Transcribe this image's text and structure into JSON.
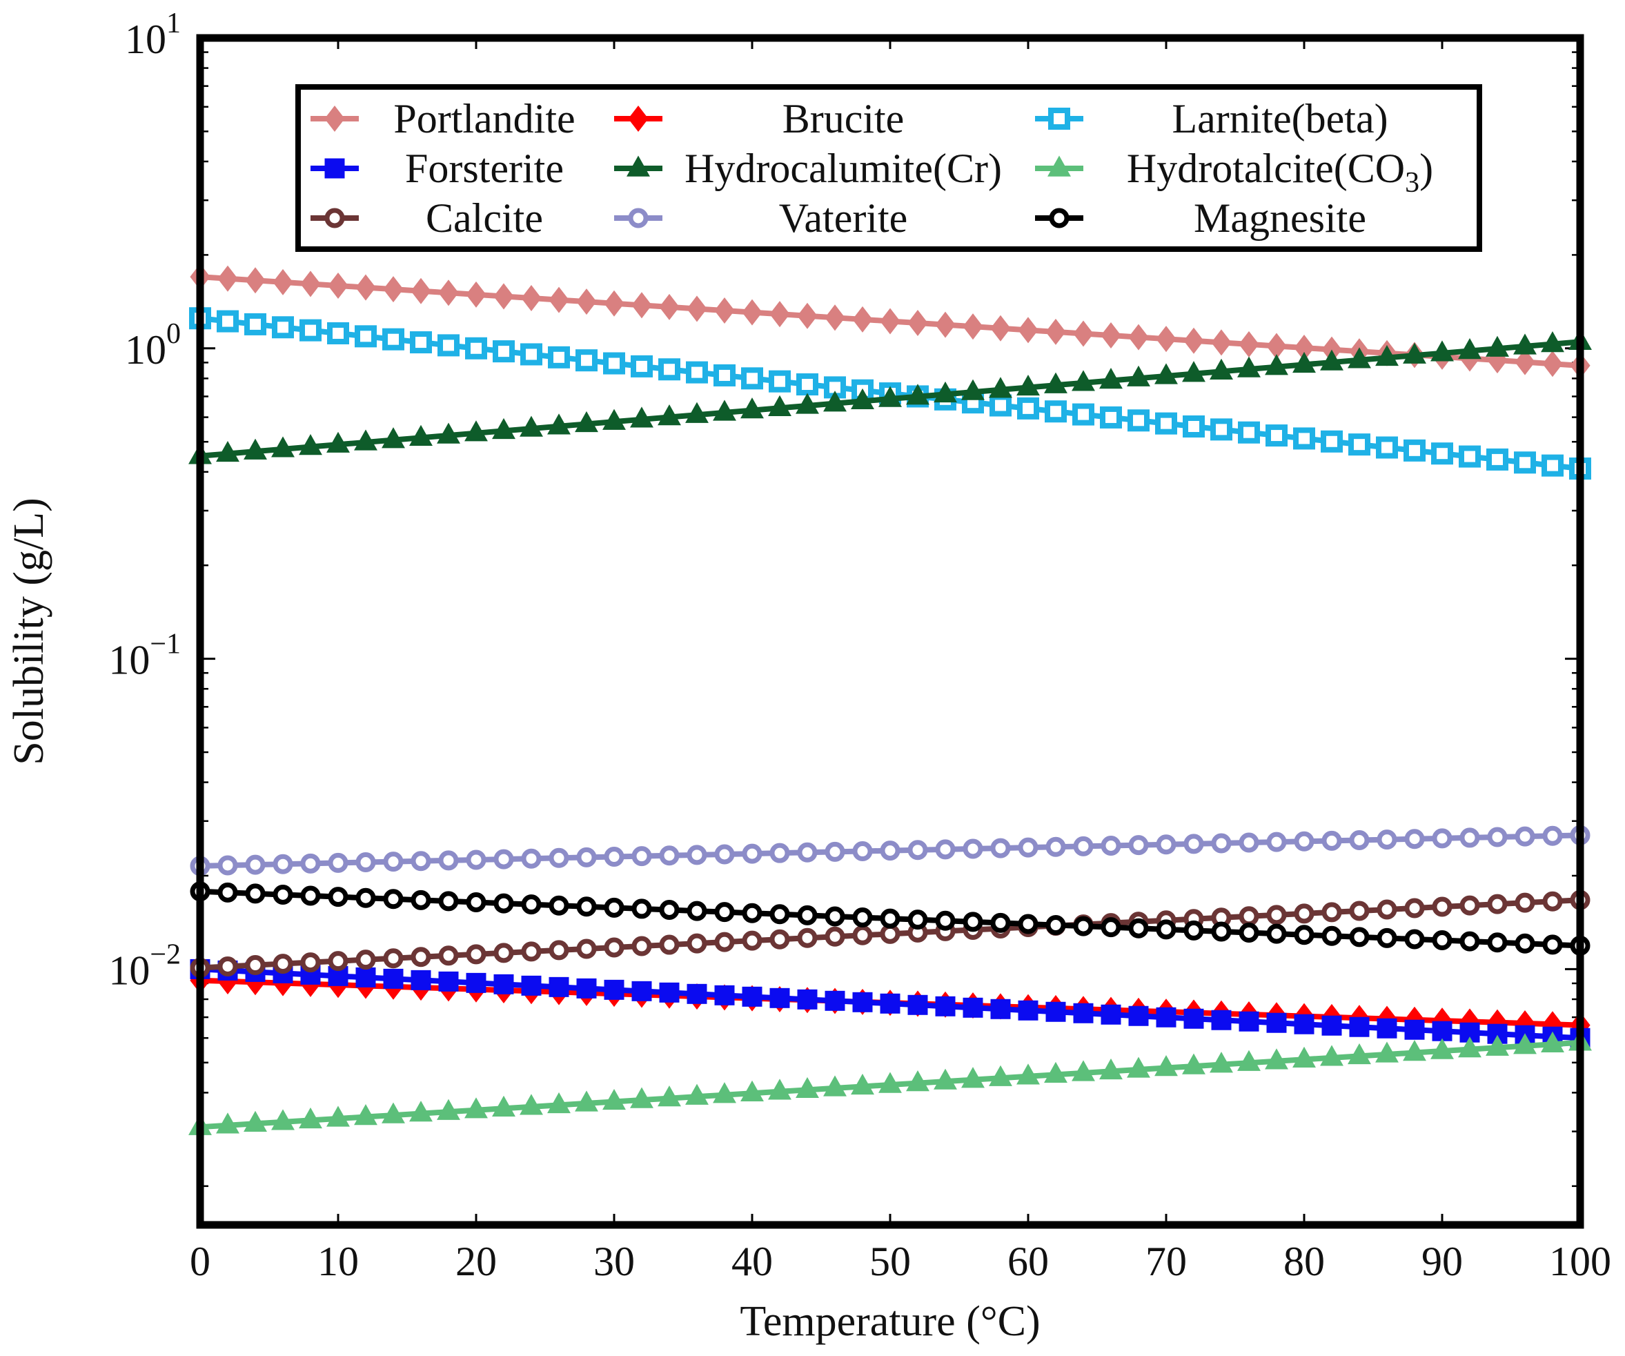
{
  "chart_data": {
    "type": "line",
    "x_scale": "linear",
    "y_scale": "log",
    "xlabel": "Temperature (°C)",
    "ylabel": "Solubility (g/L)",
    "xlim": [
      0,
      100
    ],
    "ylim": [
      0.0015,
      10
    ],
    "x_ticks": [
      0,
      10,
      20,
      30,
      40,
      50,
      60,
      70,
      80,
      90,
      100
    ],
    "x_tick_labels": [
      "0",
      "10",
      "20",
      "30",
      "40",
      "50",
      "60",
      "70",
      "80",
      "90",
      "100"
    ],
    "y_major_ticks": [
      {
        "value": 10,
        "base": "10",
        "exp": "1"
      },
      {
        "value": 1,
        "base": "10",
        "exp": "0"
      },
      {
        "value": 0.1,
        "base": "10",
        "exp": "−1"
      },
      {
        "value": 0.01,
        "base": "10",
        "exp": "−2"
      }
    ],
    "legend_position": "top",
    "legend_columns": 3,
    "x_samples": {
      "start": 0,
      "end": 100,
      "step": 2
    },
    "series": [
      {
        "name": "Portlandite",
        "label": "Portlandite",
        "color": "#d98080",
        "marker": "diamond",
        "start": 1.7,
        "end": 0.88
      },
      {
        "name": "Brucite",
        "label": "Brucite",
        "color": "#ff0000",
        "marker": "diamond",
        "start": 0.0092,
        "end": 0.0066
      },
      {
        "name": "Larnite(beta)",
        "label": "Larnite(beta)",
        "color": "#1fb1e6",
        "marker": "square-open",
        "start": 1.25,
        "end": 0.41
      },
      {
        "name": "Forsterite",
        "label": "Forsterite",
        "color": "#0b0bf0",
        "marker": "square",
        "start": 0.01,
        "end": 0.006
      },
      {
        "name": "Hydrocalumite(Cr)",
        "label": "Hydrocalumite(Cr)",
        "color": "#0e5c2a",
        "marker": "triangle",
        "start": 0.45,
        "end": 1.05
      },
      {
        "name": "Hydrotalcite(CO3)",
        "label_main": "Hydrotalcite(CO",
        "label_sub": "3",
        "label_tail": ")",
        "color": "#5cbf7a",
        "marker": "triangle",
        "start": 0.0031,
        "end": 0.0058
      },
      {
        "name": "Calcite",
        "label": "Calcite",
        "color": "#6b3535",
        "marker": "circle-open",
        "start": 0.0101,
        "end": 0.0167
      },
      {
        "name": "Vaterite",
        "label": "Vaterite",
        "color": "#8c8cc8",
        "marker": "circle-open",
        "start": 0.0215,
        "end": 0.027
      },
      {
        "name": "Magnesite",
        "label": "Magnesite",
        "color": "#000000",
        "marker": "circle-open",
        "start": 0.0178,
        "end": 0.0119
      }
    ]
  }
}
